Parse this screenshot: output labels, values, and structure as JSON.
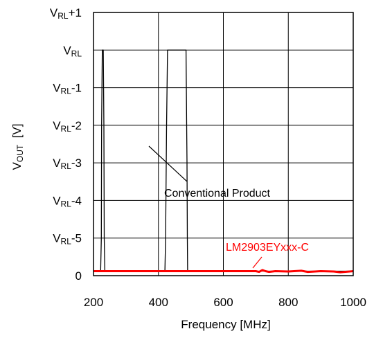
{
  "chart_data": {
    "type": "line",
    "xlabel": "Frequency  [MHz]",
    "ylabel": "VOUT  [V]",
    "xlim": [
      200,
      1000
    ],
    "ylim": [
      0,
      7
    ],
    "x_ticks": [
      200,
      400,
      600,
      800,
      1000
    ],
    "x_tick_labels": [
      "200",
      "400",
      "600",
      "800",
      "1000"
    ],
    "y_ticks": [
      {
        "value": 0,
        "label": "0"
      },
      {
        "value": 1,
        "label": "VRL-5",
        "base": "V",
        "sub": "RL",
        "suffix": "-5"
      },
      {
        "value": 2,
        "label": "VRL-4",
        "base": "V",
        "sub": "RL",
        "suffix": "-4"
      },
      {
        "value": 3,
        "label": "VRL-3",
        "base": "V",
        "sub": "RL",
        "suffix": "-3"
      },
      {
        "value": 4,
        "label": "VRL-2",
        "base": "V",
        "sub": "RL",
        "suffix": "-2"
      },
      {
        "value": 5,
        "label": "VRL-1",
        "base": "V",
        "sub": "RL",
        "suffix": "-1"
      },
      {
        "value": 6,
        "label": "VRL",
        "base": "V",
        "sub": "RL",
        "suffix": ""
      },
      {
        "value": 7,
        "label": "VRL+1",
        "base": "V",
        "sub": "RL",
        "suffix": "+1"
      }
    ],
    "grid": true,
    "series": [
      {
        "name": "Conventional Product",
        "color": "#000000",
        "x": [
          200,
          222,
          224,
          225,
          227,
          230,
          232,
          233,
          235,
          240,
          300,
          400,
          410,
          420,
          422,
          425,
          428,
          430,
          440,
          470,
          485,
          487,
          488,
          489,
          490,
          495,
          500,
          550,
          552,
          555,
          558,
          560,
          565,
          570,
          1000
        ],
        "y": [
          0.12,
          0.12,
          1.0,
          4.0,
          6.0,
          6.0,
          4.0,
          1.0,
          0.12,
          0.12,
          0.12,
          0.12,
          0.12,
          0.12,
          1.0,
          4.0,
          6.0,
          6.0,
          6.0,
          6.0,
          6.0,
          4.0,
          3.0,
          1.0,
          0.12,
          0.12,
          0.12,
          0.12,
          0.12,
          0.12,
          0.12,
          0.12,
          0.12,
          0.12,
          0.12
        ]
      },
      {
        "name": "LM2903EYxxx-C",
        "color": "#ff0000",
        "x": [
          200,
          400,
          600,
          700,
          710,
          720,
          730,
          740,
          760,
          800,
          840,
          860,
          900,
          940,
          960,
          1000
        ],
        "y": [
          0.12,
          0.12,
          0.12,
          0.12,
          0.1,
          0.15,
          0.12,
          0.1,
          0.12,
          0.11,
          0.13,
          0.1,
          0.12,
          0.11,
          0.09,
          0.12
        ]
      }
    ],
    "annotations": [
      {
        "text": "Conventional Product",
        "color": "#000000"
      },
      {
        "text": "LM2903EYxxx-C",
        "color": "#ff0000"
      }
    ]
  }
}
